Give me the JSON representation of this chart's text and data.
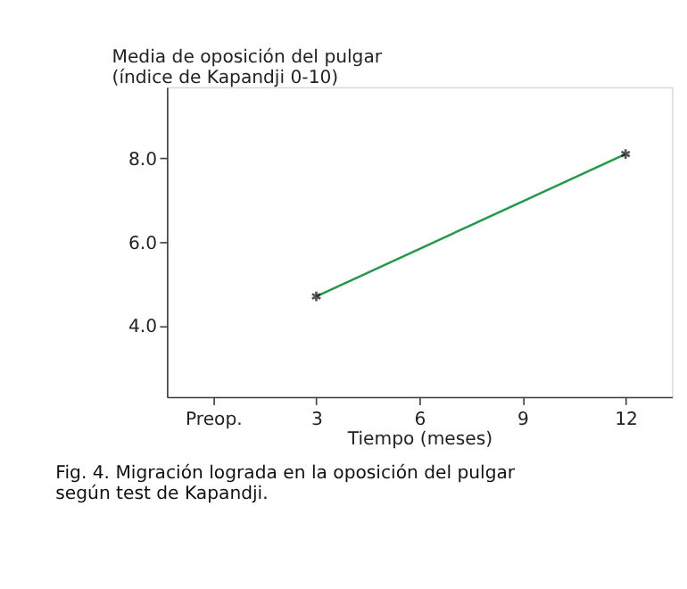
{
  "chart_data": {
    "type": "line",
    "ylabel": "Media de oposición del pulgar (índice de Kapandji 0-10)",
    "xlabel": "Tiempo (meses)",
    "categories": [
      "Preop.",
      "3",
      "6",
      "9",
      "12"
    ],
    "series": [
      {
        "color": "#239a4b",
        "values": [
          null,
          4.7,
          null,
          null,
          8.1
        ]
      }
    ],
    "ylim": [
      2.3,
      9.7
    ],
    "yticks": [
      {
        "value": 4,
        "label": "4.0"
      },
      {
        "value": 6,
        "label": "6.0"
      },
      {
        "value": 8,
        "label": "8.0"
      }
    ],
    "marker": "cross",
    "grid": false,
    "annotations": [
      "Fig. 4. Migración lograda en la oposición del pulgar según test de Kapandji."
    ]
  }
}
